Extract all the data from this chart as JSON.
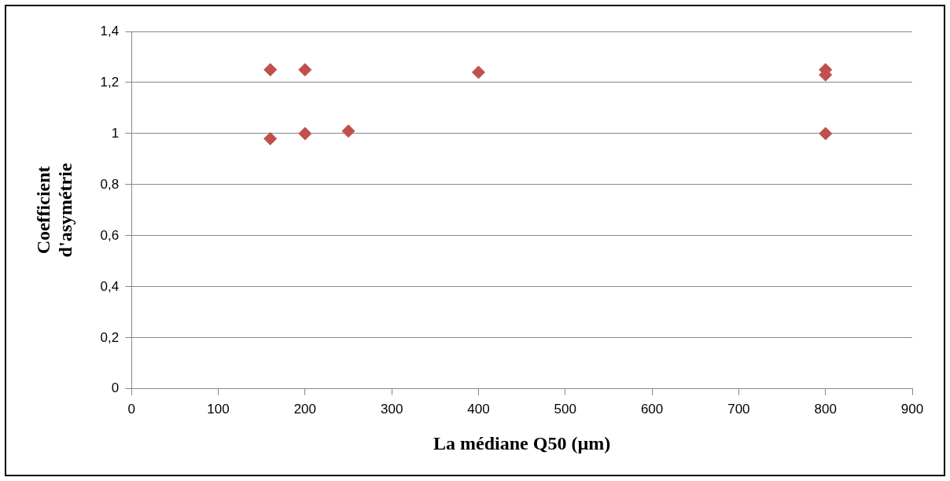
{
  "chart_data": {
    "type": "scatter",
    "xlabel": "La médiane Q50 (µm)",
    "ylabel": "Coefficient d'asymétrie",
    "series": [
      {
        "color": "#c0504d",
        "x": [
          160,
          160,
          200,
          200,
          250,
          400,
          800,
          800,
          800
        ],
        "values": [
          1.25,
          0.98,
          1.25,
          1.0,
          1.01,
          1.24,
          1.25,
          1.23,
          1.0
        ]
      }
    ],
    "xlim": [
      0,
      900
    ],
    "xticks": [
      0,
      100,
      200,
      300,
      400,
      500,
      600,
      700,
      800,
      900
    ],
    "ylim": [
      0,
      1.4
    ],
    "yticks": [
      0,
      {
        "value": 0.2,
        "label": "0,2"
      },
      {
        "value": 0.4,
        "label": "0,4"
      },
      {
        "value": 0.6,
        "label": "0,6"
      },
      {
        "value": 0.8,
        "label": "0,8"
      },
      1,
      {
        "value": 1.2,
        "label": "1,2"
      },
      {
        "value": 1.4,
        "label": "1,4"
      }
    ],
    "grid": "y",
    "legend": false,
    "marker": "diamond"
  }
}
